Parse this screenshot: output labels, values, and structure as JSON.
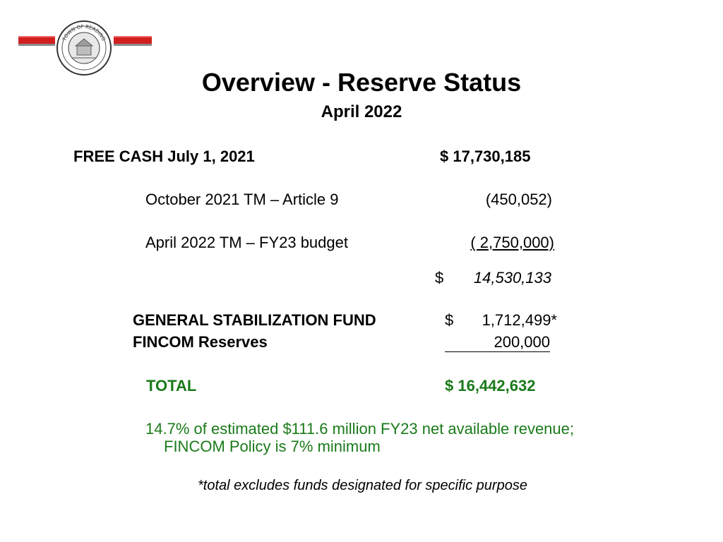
{
  "header": {
    "title": "Overview - Reserve Status",
    "subtitle": "April 2022",
    "seal_text": "TOWN OF READING"
  },
  "free_cash": {
    "label": "FREE CASH July 1, 2021",
    "amount": "$ 17,730,185"
  },
  "adjustments": [
    {
      "label": "October 2021 TM – Article 9",
      "amount": "(450,052)"
    },
    {
      "label": "April 2022 TM – FY23 budget",
      "amount": "( 2,750,000)"
    }
  ],
  "subtotal": {
    "currency": "$",
    "amount": "14,530,133"
  },
  "stabilization": {
    "label": "GENERAL STABILIZATION FUND",
    "currency": "$",
    "amount": "1,712,499*"
  },
  "fincom": {
    "label": "FINCOM Reserves",
    "amount": "200,000"
  },
  "total": {
    "label": "TOTAL",
    "amount": "$ 16,442,632"
  },
  "note": {
    "line1": "14.7% of estimated $111.6 million FY23 net available revenue;",
    "line2": "FINCOM Policy is 7% minimum"
  },
  "footnote": "*total excludes funds designated for specific purpose",
  "colors": {
    "accent_red": "#d21f1f",
    "total_green": "#1a7a1a"
  }
}
